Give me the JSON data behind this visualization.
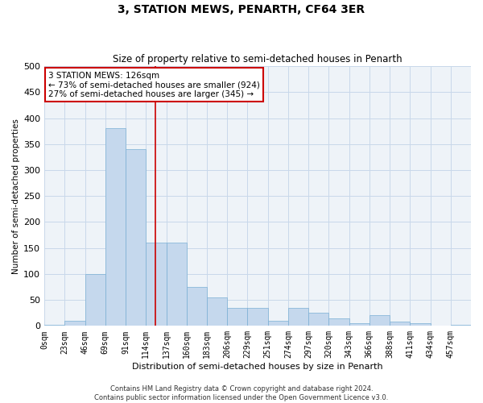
{
  "title": "3, STATION MEWS, PENARTH, CF64 3ER",
  "subtitle": "Size of property relative to semi-detached houses in Penarth",
  "xlabel": "Distribution of semi-detached houses by size in Penarth",
  "ylabel": "Number of semi-detached properties",
  "footer_line1": "Contains HM Land Registry data © Crown copyright and database right 2024.",
  "footer_line2": "Contains public sector information licensed under the Open Government Licence v3.0.",
  "annotation_title": "3 STATION MEWS: 126sqm",
  "annotation_line1": "← 73% of semi-detached houses are smaller (924)",
  "annotation_line2": "27% of semi-detached houses are larger (345) →",
  "property_size": 126,
  "bin_edges": [
    0,
    23,
    46,
    69,
    92,
    115,
    138,
    161,
    184,
    207,
    230,
    253,
    276,
    299,
    322,
    345,
    368,
    391,
    414,
    437,
    460
  ],
  "bin_labels": [
    "0sqm",
    "23sqm",
    "46sqm",
    "69sqm",
    "91sqm",
    "114sqm",
    "137sqm",
    "160sqm",
    "183sqm",
    "206sqm",
    "229sqm",
    "251sqm",
    "274sqm",
    "297sqm",
    "320sqm",
    "343sqm",
    "366sqm",
    "388sqm",
    "411sqm",
    "434sqm",
    "457sqm"
  ],
  "counts": [
    2,
    10,
    100,
    380,
    340,
    160,
    160,
    75,
    55,
    35,
    35,
    10,
    35,
    25,
    15,
    5,
    20,
    8,
    5,
    0,
    2
  ],
  "bar_color": "#c5d8ed",
  "bar_edge_color": "#7aafd4",
  "vline_color": "#cc0000",
  "grid_color": "#c8d8ea",
  "bg_color": "#eef3f8",
  "annotation_box_color": "#ffffff",
  "annotation_box_edge": "#cc0000",
  "ylim": [
    0,
    500
  ],
  "yticks": [
    0,
    50,
    100,
    150,
    200,
    250,
    300,
    350,
    400,
    450,
    500
  ],
  "title_fontsize": 10,
  "subtitle_fontsize": 8.5,
  "xlabel_fontsize": 8,
  "ylabel_fontsize": 7.5,
  "tick_fontsize": 7,
  "annotation_fontsize": 7.5,
  "footer_fontsize": 6
}
